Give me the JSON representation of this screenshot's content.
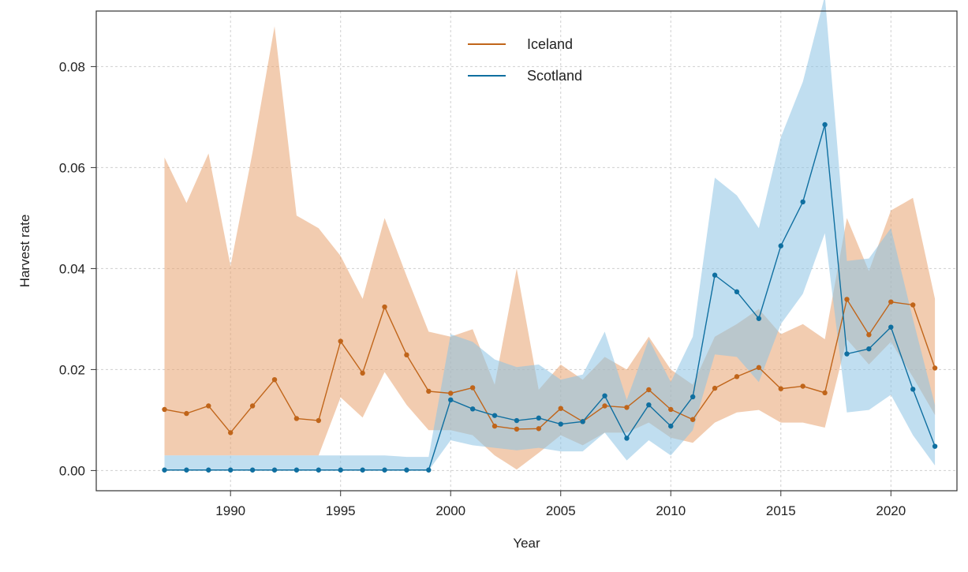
{
  "chart_data": {
    "type": "line",
    "title": "",
    "xlabel": "Year",
    "ylabel": "Harvest rate",
    "xlim": [
      1985.8,
      1987.2
    ],
    "ylim": [
      -0.004,
      0.091
    ],
    "x_ticks": [
      1990,
      1995,
      2000,
      2005,
      2010,
      2015,
      2020
    ],
    "y_ticks": [
      0.0,
      0.02,
      0.04,
      0.06,
      0.08
    ],
    "y_tick_labels": [
      "0.00",
      "0.02",
      "0.04",
      "0.06",
      "0.08"
    ],
    "grid": true,
    "legend_position": "top-center",
    "x": [
      1987,
      1988,
      1989,
      1990,
      1991,
      1992,
      1993,
      1994,
      1995,
      1996,
      1997,
      1998,
      1999,
      2000,
      2001,
      2002,
      2003,
      2004,
      2005,
      2006,
      2007,
      2008,
      2009,
      2010,
      2011,
      2012,
      2013,
      2014,
      2015,
      2016,
      2017,
      2018,
      2019,
      2020,
      2021,
      2022
    ],
    "series": [
      {
        "name": "Iceland",
        "color": "#c0651a",
        "band_color": "#e8a370",
        "values": [
          0.0121,
          0.0113,
          0.0128,
          0.0075,
          0.0128,
          0.018,
          0.0103,
          0.0099,
          0.0256,
          0.0193,
          0.0324,
          0.0229,
          0.0157,
          0.0153,
          0.0164,
          0.0088,
          0.0082,
          0.0083,
          0.0123,
          0.0097,
          0.0128,
          0.0125,
          0.016,
          0.0121,
          0.0101,
          0.0163,
          0.0186,
          0.0204,
          0.0162,
          0.0167,
          0.0154,
          0.0339,
          0.0269,
          0.0334,
          0.0328,
          0.0203
        ],
        "lower": [
          0.003,
          0.003,
          0.003,
          0.003,
          0.003,
          0.003,
          0.003,
          0.003,
          0.0145,
          0.0105,
          0.0195,
          0.013,
          0.008,
          0.008,
          0.007,
          0.003,
          0.0002,
          0.0035,
          0.007,
          0.005,
          0.0075,
          0.0075,
          0.0095,
          0.0065,
          0.0055,
          0.0095,
          0.0115,
          0.012,
          0.0095,
          0.0095,
          0.0085,
          0.026,
          0.021,
          0.0255,
          0.0185,
          0.011
        ],
        "upper": [
          0.062,
          0.053,
          0.0628,
          0.0405,
          0.063,
          0.088,
          0.0505,
          0.048,
          0.0425,
          0.034,
          0.05,
          0.0385,
          0.0275,
          0.0265,
          0.028,
          0.017,
          0.04,
          0.016,
          0.021,
          0.018,
          0.0225,
          0.02,
          0.0265,
          0.02,
          0.017,
          0.0265,
          0.029,
          0.032,
          0.027,
          0.029,
          0.026,
          0.05,
          0.0395,
          0.0515,
          0.054,
          0.034
        ]
      },
      {
        "name": "Scotland",
        "color": "#0f6fa0",
        "band_color": "#8cc2e4",
        "values": [
          0.0001,
          0.0001,
          0.0001,
          0.0001,
          0.0001,
          0.0001,
          0.0001,
          0.0001,
          0.0001,
          0.0001,
          0.0001,
          0.0001,
          0.0001,
          0.014,
          0.0122,
          0.0109,
          0.0099,
          0.0104,
          0.0092,
          0.0097,
          0.0148,
          0.0064,
          0.013,
          0.0088,
          0.0146,
          0.0387,
          0.0354,
          0.0301,
          0.0445,
          0.0532,
          0.0685,
          0.0231,
          0.0241,
          0.0284,
          0.0161,
          0.0048
        ],
        "lower": [
          0.0,
          0.0,
          0.0,
          0.0,
          0.0,
          0.0,
          0.0,
          0.0,
          0.0,
          0.0,
          0.0,
          0.0,
          0.0,
          0.006,
          0.005,
          0.0045,
          0.004,
          0.0045,
          0.0038,
          0.0038,
          0.0075,
          0.002,
          0.006,
          0.003,
          0.008,
          0.023,
          0.0225,
          0.0175,
          0.029,
          0.035,
          0.047,
          0.0115,
          0.012,
          0.015,
          0.007,
          0.001
        ],
        "upper": [
          0.003,
          0.003,
          0.003,
          0.003,
          0.003,
          0.003,
          0.003,
          0.003,
          0.003,
          0.003,
          0.003,
          0.0027,
          0.0027,
          0.027,
          0.0255,
          0.022,
          0.0205,
          0.021,
          0.018,
          0.019,
          0.0275,
          0.014,
          0.026,
          0.0175,
          0.0265,
          0.058,
          0.0545,
          0.048,
          0.066,
          0.077,
          0.094,
          0.0415,
          0.042,
          0.048,
          0.03,
          0.013
        ]
      }
    ]
  }
}
